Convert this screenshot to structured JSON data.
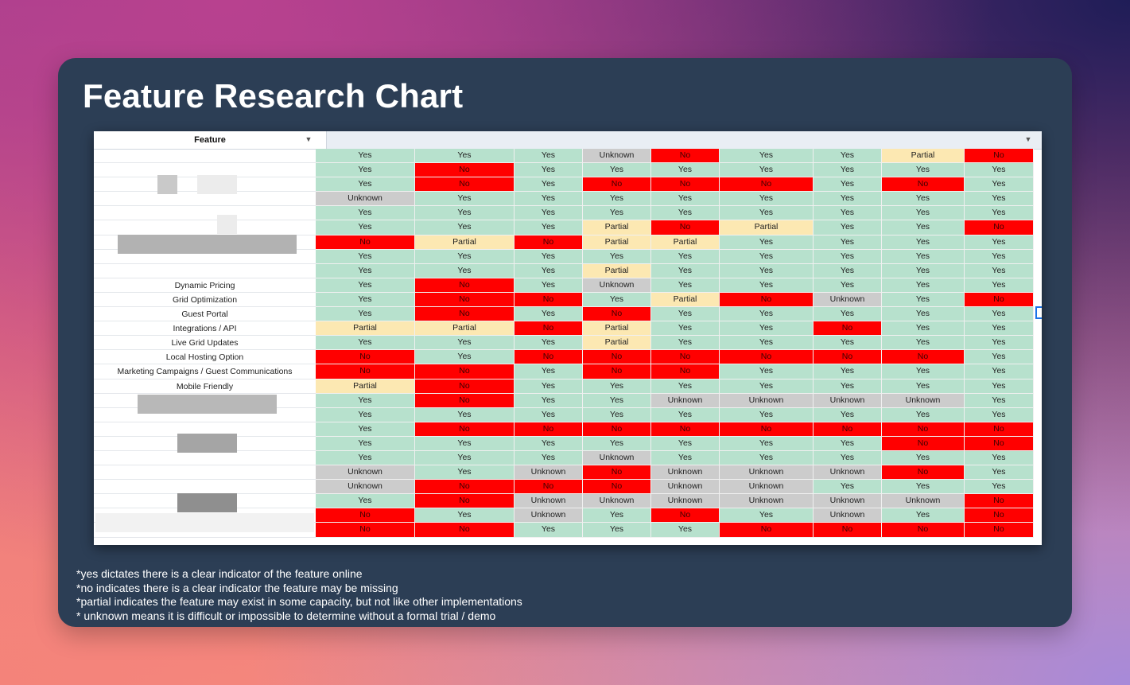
{
  "title": "Feature Research Chart",
  "table": {
    "feature_header": "Feature",
    "filter_icon": "filter-icon",
    "labels": [
      "",
      "",
      "",
      "",
      "",
      "",
      "",
      "",
      "",
      "Dynamic Pricing",
      "Grid Optimization",
      "Guest Portal",
      "Integrations / API",
      "Live Grid Updates",
      "Local Hosting Option",
      "Marketing Campaigns / Guest Communications",
      "Mobile Friendly",
      "",
      "",
      "",
      "",
      "",
      "",
      "",
      "",
      "",
      ""
    ]
  },
  "chart_data": {
    "type": "table",
    "title": "Feature Research Chart",
    "columns": 9,
    "rows": [
      [
        "Yes",
        "Yes",
        "Yes",
        "Unknown",
        "No",
        "Yes",
        "Yes",
        "Partial",
        "No"
      ],
      [
        "Yes",
        "No",
        "Yes",
        "Yes",
        "Yes",
        "Yes",
        "Yes",
        "Yes",
        "Yes"
      ],
      [
        "Yes",
        "No",
        "Yes",
        "No",
        "No",
        "No",
        "Yes",
        "No",
        "Yes"
      ],
      [
        "Unknown",
        "Yes",
        "Yes",
        "Yes",
        "Yes",
        "Yes",
        "Yes",
        "Yes",
        "Yes"
      ],
      [
        "Yes",
        "Yes",
        "Yes",
        "Yes",
        "Yes",
        "Yes",
        "Yes",
        "Yes",
        "Yes"
      ],
      [
        "Yes",
        "Yes",
        "Yes",
        "Partial",
        "No",
        "Partial",
        "Yes",
        "Yes",
        "No"
      ],
      [
        "No",
        "Partial",
        "No",
        "Partial",
        "Partial",
        "Yes",
        "Yes",
        "Yes",
        "Yes"
      ],
      [
        "Yes",
        "Yes",
        "Yes",
        "Yes",
        "Yes",
        "Yes",
        "Yes",
        "Yes",
        "Yes"
      ],
      [
        "Yes",
        "Yes",
        "Yes",
        "Partial",
        "Yes",
        "Yes",
        "Yes",
        "Yes",
        "Yes"
      ],
      [
        "Yes",
        "No",
        "Yes",
        "Unknown",
        "Yes",
        "Yes",
        "Yes",
        "Yes",
        "Yes"
      ],
      [
        "Yes",
        "No",
        "No",
        "Yes",
        "Partial",
        "No",
        "Unknown",
        "Yes",
        "No"
      ],
      [
        "Yes",
        "No",
        "Yes",
        "No",
        "Yes",
        "Yes",
        "Yes",
        "Yes",
        "Yes"
      ],
      [
        "Partial",
        "Partial",
        "No",
        "Partial",
        "Yes",
        "Yes",
        "No",
        "Yes",
        "Yes"
      ],
      [
        "Yes",
        "Yes",
        "Yes",
        "Partial",
        "Yes",
        "Yes",
        "Yes",
        "Yes",
        "Yes"
      ],
      [
        "No",
        "Yes",
        "No",
        "No",
        "No",
        "No",
        "No",
        "No",
        "Yes"
      ],
      [
        "No",
        "No",
        "Yes",
        "No",
        "No",
        "Yes",
        "Yes",
        "Yes",
        "Yes"
      ],
      [
        "Partial",
        "No",
        "Yes",
        "Yes",
        "Yes",
        "Yes",
        "Yes",
        "Yes",
        "Yes"
      ],
      [
        "Yes",
        "No",
        "Yes",
        "Yes",
        "Unknown",
        "Unknown",
        "Unknown",
        "Unknown",
        "Yes"
      ],
      [
        "Yes",
        "Yes",
        "Yes",
        "Yes",
        "Yes",
        "Yes",
        "Yes",
        "Yes",
        "Yes"
      ],
      [
        "Yes",
        "No",
        "No",
        "No",
        "No",
        "No",
        "No",
        "No",
        "No"
      ],
      [
        "Yes",
        "Yes",
        "Yes",
        "Yes",
        "Yes",
        "Yes",
        "Yes",
        "No",
        "No"
      ],
      [
        "Yes",
        "Yes",
        "Yes",
        "Unknown",
        "Yes",
        "Yes",
        "Yes",
        "Yes",
        "Yes"
      ],
      [
        "Unknown",
        "Yes",
        "Unknown",
        "No",
        "Unknown",
        "Unknown",
        "Unknown",
        "No",
        "Yes"
      ],
      [
        "Unknown",
        "No",
        "No",
        "No",
        "Unknown",
        "Unknown",
        "Yes",
        "Yes",
        "Yes"
      ],
      [
        "Yes",
        "No",
        "Unknown",
        "Unknown",
        "Unknown",
        "Unknown",
        "Unknown",
        "Unknown",
        "No"
      ],
      [
        "No",
        "Yes",
        "Unknown",
        "Yes",
        "No",
        "Yes",
        "Unknown",
        "Yes",
        "No"
      ],
      [
        "No",
        "No",
        "Yes",
        "Yes",
        "Yes",
        "No",
        "No",
        "No",
        "No"
      ]
    ],
    "colors": {
      "Yes": "#b7e1cd",
      "No": "#ff0000",
      "Partial": "#fce8b2",
      "Unknown": "#cccccc"
    }
  },
  "legend": [
    "*yes dictates there is a clear indicator of the feature online",
    "*no indicates there is a clear indicator the feature may be missing",
    "*partial indicates the feature may exist in some capacity, but not like other implementations",
    "* unknown means it is difficult or impossible to determine without a formal trial / demo"
  ]
}
